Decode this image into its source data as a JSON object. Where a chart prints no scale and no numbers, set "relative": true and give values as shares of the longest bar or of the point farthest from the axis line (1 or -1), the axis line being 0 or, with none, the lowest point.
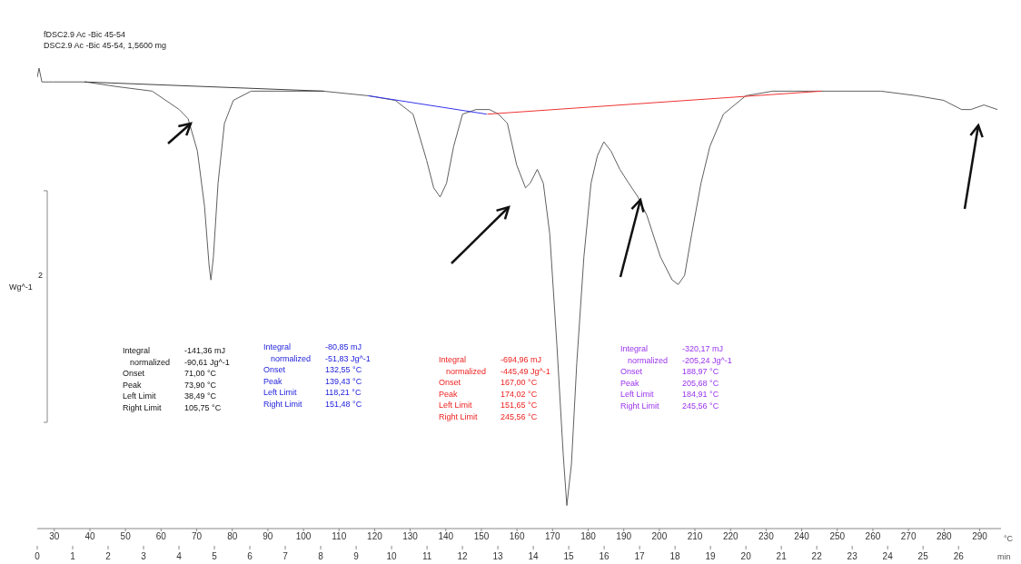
{
  "chart_data": {
    "type": "line",
    "title": "fDSC2.9 Ac -Bic 45-54",
    "subtitle": "DSC2.9 Ac -Bic 45-54, 1,5600 mg",
    "xlabel": "°C",
    "x2label": "min",
    "ylabel": "Wg^-1",
    "relative": true,
    "xlim": [
      25.2,
      296
    ],
    "xticks": [
      30,
      40,
      50,
      60,
      70,
      80,
      90,
      100,
      110,
      120,
      130,
      140,
      150,
      160,
      170,
      180,
      190,
      200,
      210,
      220,
      230,
      240,
      250,
      260,
      270,
      280,
      290
    ],
    "x2lim": [
      0,
      27.2
    ],
    "x2ticks": [
      0,
      1,
      2,
      3,
      4,
      5,
      6,
      7,
      8,
      9,
      10,
      11,
      12,
      13,
      14,
      15,
      16,
      17,
      18,
      19,
      20,
      21,
      22,
      23,
      24,
      25,
      26
    ],
    "series": [
      {
        "color": "#606060",
        "x": [
          25.2,
          25.7,
          26.5,
          29.7,
          38.8,
          47.4,
          57.5,
          65.1,
          67.6,
          70.2,
          72.2,
          73.5,
          74.0,
          74.7,
          76.0,
          77.8,
          80.3,
          85.3,
          98.0,
          105.5,
          118.2,
          125.8,
          130.8,
          134.6,
          136.6,
          138.4,
          140.2,
          142.2,
          144.7,
          148.5,
          152.3,
          154.8,
          157.3,
          159.9,
          162.4,
          163.7,
          165.7,
          167.4,
          169.2,
          171.2,
          173.0,
          174.0,
          175.3,
          176.8,
          178.8,
          180.8,
          182.6,
          184.4,
          186.4,
          188.9,
          191.4,
          194.0,
          196.5,
          200.3,
          203.6,
          205.3,
          207.1,
          209.1,
          211.7,
          214.2,
          218.0,
          224.3,
          231.9,
          242.0,
          252.1,
          262.2,
          272.3,
          279.9,
          284.9,
          287.5,
          291.2,
          295.0
        ],
        "values": [
          0.98,
          1.0,
          0.97,
          0.97,
          0.97,
          0.96,
          0.95,
          0.91,
          0.89,
          0.82,
          0.7,
          0.57,
          0.54,
          0.59,
          0.75,
          0.88,
          0.93,
          0.95,
          0.95,
          0.95,
          0.94,
          0.93,
          0.9,
          0.8,
          0.74,
          0.72,
          0.75,
          0.83,
          0.9,
          0.91,
          0.91,
          0.9,
          0.88,
          0.79,
          0.74,
          0.75,
          0.78,
          0.75,
          0.64,
          0.4,
          0.16,
          0.05,
          0.14,
          0.36,
          0.59,
          0.75,
          0.81,
          0.84,
          0.82,
          0.78,
          0.75,
          0.72,
          0.68,
          0.59,
          0.54,
          0.53,
          0.55,
          0.64,
          0.75,
          0.83,
          0.9,
          0.94,
          0.95,
          0.95,
          0.95,
          0.95,
          0.94,
          0.93,
          0.91,
          0.91,
          0.92,
          0.91
        ]
      },
      {
        "color": "#404040",
        "x": [
          38.49,
          105.75
        ],
        "values": [
          0.97,
          0.95
        ]
      },
      {
        "color": "#3333ee",
        "x": [
          118.21,
          151.48
        ],
        "values": [
          0.94,
          0.9
        ]
      },
      {
        "color": "#ee3333",
        "x": [
          151.65,
          245.56
        ],
        "values": [
          0.9,
          0.95
        ]
      }
    ],
    "annotations": [
      "Integral\t-141,36 mJ\nnormalized\t-90,61 Jg^-1\nOnset\t71,00 °C\nPeak\t73,90 °C\nLeft Limit\t38,49 °C\nRight Limit\t105,75 °C",
      "Integral\t-80,85 mJ\nnormalized\t-51,83 Jg^-1\nOnset\t132,55 °C\nPeak\t139,43 °C\nLeft Limit\t118,21 °C\nRight Limit\t151,48 °C",
      "Integral\t-694,96 mJ\nnormalized\t-445,49 Jg^-1\nOnset\t167,00 °C\nPeak\t174,02 °C\nLeft Limit\t151,65 °C\nRight Limit\t245,56 °C",
      "Integral\t-320,17 mJ\nnormalized\t-205,24 Jg^-1\nOnset\t188,97 °C\nPeak\t205,68 °C\nLeft Limit\t184,91 °C\nRight Limit\t245,56 °C",
      "2"
    ]
  }
}
